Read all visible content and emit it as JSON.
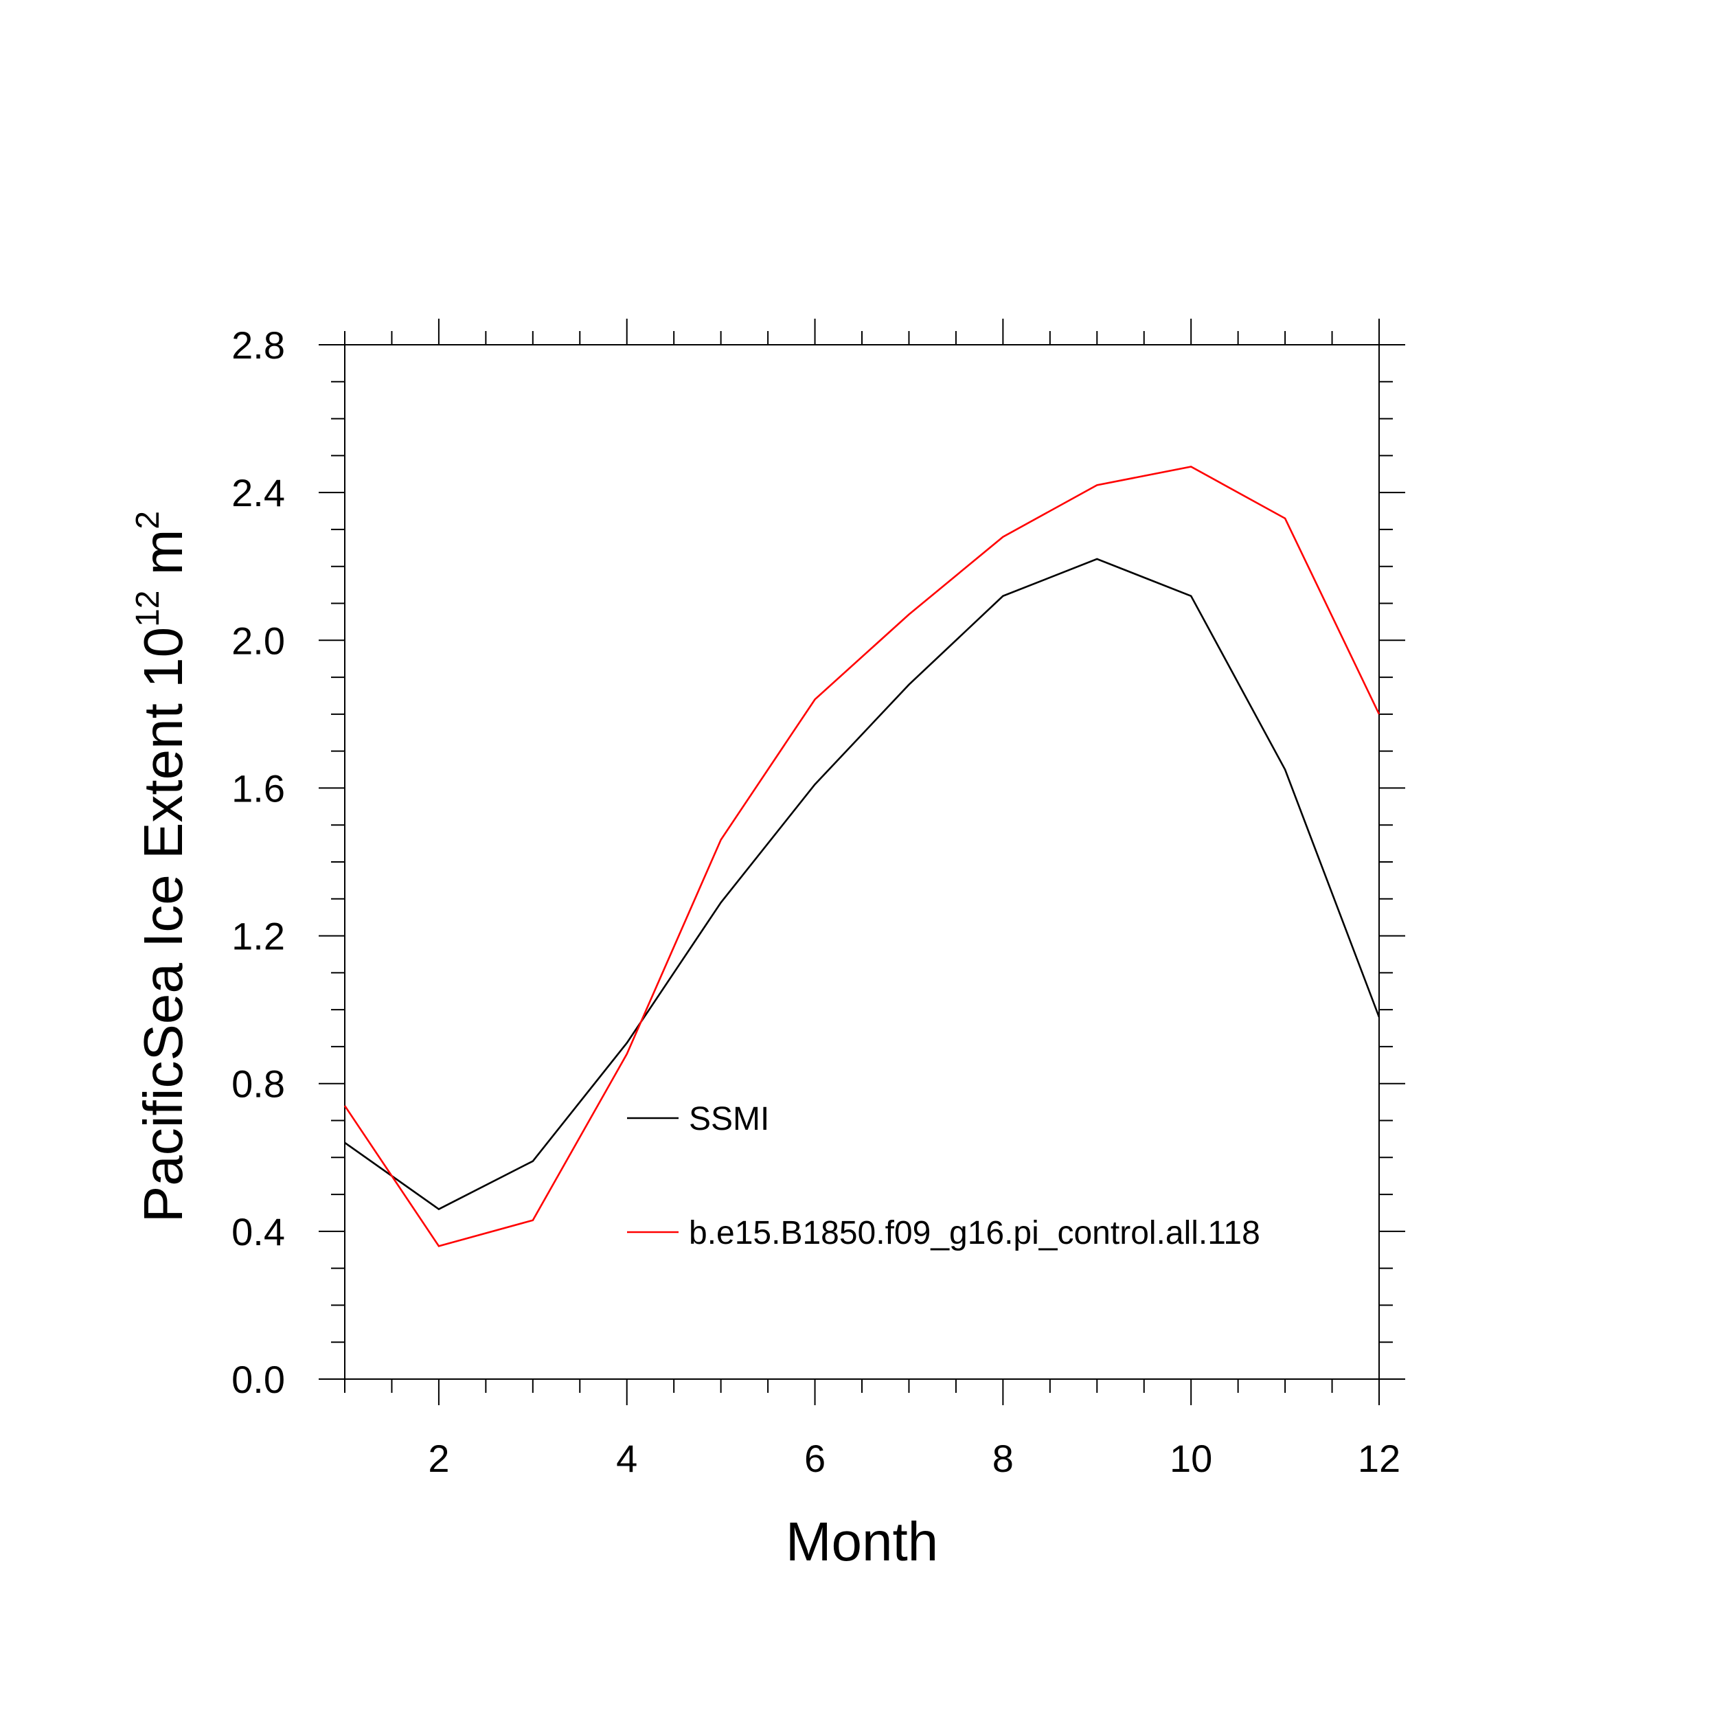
{
  "chart_data": {
    "type": "line",
    "xlabel": "Month",
    "ylabel": {
      "text": "PacificSea Ice Extent 10",
      "superscript1": "12",
      "unit": " m",
      "superscript2": "2"
    },
    "xlim": [
      1,
      12
    ],
    "ylim": [
      0.0,
      2.8
    ],
    "x_ticks": [
      2,
      4,
      6,
      8,
      10,
      12
    ],
    "y_ticks": [
      "0.0",
      "0.4",
      "0.8",
      "1.2",
      "1.6",
      "2.0",
      "2.4",
      "2.8"
    ],
    "x": [
      1,
      2,
      3,
      4,
      5,
      6,
      7,
      8,
      9,
      10,
      11,
      12
    ],
    "series": [
      {
        "name": "SSMI",
        "color": "#000000",
        "values": [
          0.64,
          0.46,
          0.59,
          0.91,
          1.29,
          1.61,
          1.88,
          2.12,
          2.22,
          2.12,
          1.65,
          0.98
        ]
      },
      {
        "name": "b.e15.B1850.f09_g16.pi_control.all.118",
        "color": "#ff0000",
        "values": [
          0.74,
          0.36,
          0.43,
          0.88,
          1.46,
          1.84,
          2.07,
          2.28,
          2.42,
          2.47,
          2.33,
          1.8
        ]
      }
    ],
    "legend_position": "center",
    "grid": false
  }
}
